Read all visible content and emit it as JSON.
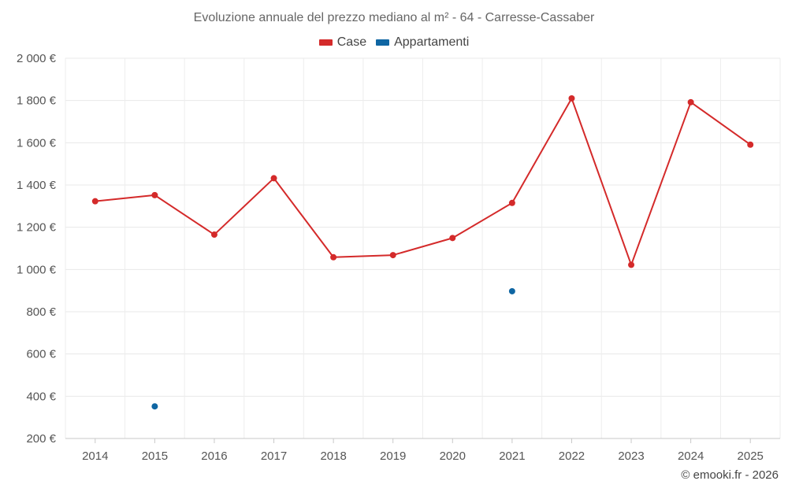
{
  "chart_data": {
    "type": "line",
    "title": "Evoluzione annuale del prezzo mediano al m² - 64 - Carresse-Cassaber",
    "xlabel": "",
    "ylabel": "",
    "categories": [
      "2014",
      "2015",
      "2016",
      "2017",
      "2018",
      "2019",
      "2020",
      "2021",
      "2022",
      "2023",
      "2024",
      "2025"
    ],
    "series": [
      {
        "name": "Case",
        "color": "#d42a2a",
        "values": [
          1323,
          1352,
          1165,
          1432,
          1058,
          1068,
          1149,
          1315,
          1810,
          1022,
          1792,
          1591
        ]
      },
      {
        "name": "Appartamenti",
        "color": "#0f66a3",
        "values": [
          null,
          352,
          null,
          null,
          null,
          null,
          null,
          897,
          null,
          null,
          null,
          null
        ]
      }
    ],
    "ylim": [
      200,
      2000
    ],
    "yticks": [
      200,
      400,
      600,
      800,
      1000,
      1200,
      1400,
      1600,
      1800,
      2000
    ],
    "ytick_labels": [
      "200 €",
      "400 €",
      "600 €",
      "800 €",
      "1 000 €",
      "1 200 €",
      "1 400 €",
      "1 600 €",
      "1 800 €",
      "2 000 €"
    ],
    "grid": true,
    "legend_position": "top-center"
  },
  "credit": "© emooki.fr - 2026"
}
